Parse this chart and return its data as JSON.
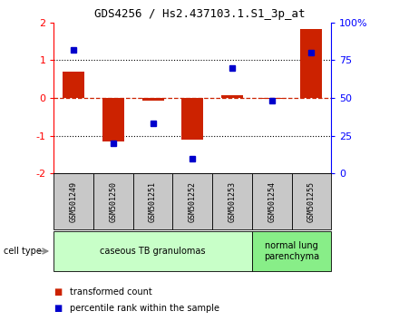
{
  "title": "GDS4256 / Hs2.437103.1.S1_3p_at",
  "samples": [
    "GSM501249",
    "GSM501250",
    "GSM501251",
    "GSM501252",
    "GSM501253",
    "GSM501254",
    "GSM501255"
  ],
  "transformed_counts": [
    0.7,
    -1.15,
    -0.07,
    -1.1,
    0.08,
    -0.03,
    1.82
  ],
  "percentile_ranks_pct": [
    82,
    20,
    33,
    10,
    70,
    48,
    80
  ],
  "bar_color": "#cc2200",
  "dot_color": "#0000cc",
  "ylim": [
    -2,
    2
  ],
  "right_ylim": [
    0,
    100
  ],
  "right_yticks": [
    0,
    25,
    50,
    75,
    100
  ],
  "right_yticklabels": [
    "0",
    "25",
    "50",
    "75",
    "100%"
  ],
  "left_yticks": [
    -2,
    -1,
    0,
    1,
    2
  ],
  "label_bg": "#c8c8c8",
  "group1_color": "#c8ffc8",
  "group2_color": "#88ee88",
  "group1_label": "caseous TB granulomas",
  "group1_indices": [
    0,
    1,
    2,
    3,
    4
  ],
  "group2_label": "normal lung\nparenchyma",
  "group2_indices": [
    5,
    6
  ],
  "legend_items": [
    {
      "label": "transformed count",
      "color": "#cc2200"
    },
    {
      "label": "percentile rank within the sample",
      "color": "#0000cc"
    }
  ]
}
